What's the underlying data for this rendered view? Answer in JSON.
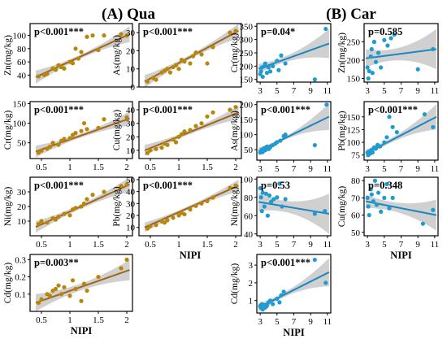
{
  "panel_titles": [
    {
      "label": "(A) Qua"
    },
    {
      "label": "(B) Car"
    }
  ],
  "colors": {
    "qua_point": "#b8860b",
    "qua_line": "#a0651a",
    "car_point": "#1f9bd1",
    "car_line": "#1b86c0",
    "ci_band": "#c8c8c8"
  },
  "chart_data": [
    {
      "panel": "Qua",
      "type": "scatter",
      "ylabel": "Zn(mg/kg)",
      "xlabel": "",
      "annotation": "p<0.001***",
      "xlim": [
        0.3,
        2.1
      ],
      "ylim": [
        22,
        118
      ],
      "xticks": [],
      "yticks": [
        40,
        60,
        80,
        100
      ],
      "fit": [
        [
          0.4,
          37
        ],
        [
          2.05,
          102
        ]
      ],
      "ci": [
        10,
        3,
        12
      ],
      "x": [
        0.45,
        0.55,
        0.6,
        0.7,
        0.75,
        0.8,
        0.85,
        0.9,
        1.0,
        1.05,
        1.1,
        1.15,
        1.2,
        1.3,
        1.4,
        1.5,
        1.6,
        1.9,
        2.0
      ],
      "y": [
        38,
        40,
        42,
        50,
        48,
        55,
        52,
        50,
        60,
        58,
        80,
        65,
        75,
        98,
        100,
        78,
        100,
        102,
        100
      ]
    },
    {
      "panel": "Qua",
      "type": "scatter",
      "ylabel": "As(mg/kg)",
      "xlabel": "",
      "annotation": "p<0.001***",
      "xlim": [
        0.3,
        2.1
      ],
      "ylim": [
        0,
        35
      ],
      "xticks": [],
      "yticks": [
        0,
        10,
        20,
        30
      ],
      "fit": [
        [
          0.4,
          3
        ],
        [
          2.05,
          31
        ]
      ],
      "ci": [
        3.5,
        1.2,
        4
      ],
      "x": [
        0.45,
        0.55,
        0.6,
        0.7,
        0.75,
        0.8,
        0.85,
        0.9,
        0.95,
        1.0,
        1.05,
        1.1,
        1.2,
        1.25,
        1.3,
        1.4,
        1.5,
        1.6,
        1.9,
        2.0
      ],
      "y": [
        3,
        5,
        4,
        8,
        9,
        10,
        8,
        11,
        12,
        10,
        15,
        14,
        13,
        17,
        19,
        18,
        13,
        22,
        30,
        31
      ]
    },
    {
      "panel": "Qua",
      "type": "scatter",
      "ylabel": "Cr(mg/kg)",
      "xlabel": "",
      "annotation": "p<0.001***",
      "xlim": [
        0.3,
        2.1
      ],
      "ylim": [
        10,
        155
      ],
      "xticks": [
        0.5,
        1.0,
        1.5,
        2.0
      ],
      "yticks": [
        50,
        100,
        150
      ],
      "fit": [
        [
          0.4,
          28
        ],
        [
          2.05,
          112
        ]
      ],
      "ci": [
        15,
        5,
        18
      ],
      "x": [
        0.45,
        0.5,
        0.6,
        0.65,
        0.7,
        0.8,
        0.85,
        0.9,
        1.0,
        1.05,
        1.1,
        1.2,
        1.25,
        1.3,
        1.5,
        1.6,
        2.0
      ],
      "y": [
        25,
        30,
        35,
        40,
        50,
        45,
        55,
        60,
        62,
        70,
        75,
        80,
        100,
        85,
        88,
        110,
        115
      ]
    },
    {
      "panel": "Qua",
      "type": "scatter",
      "ylabel": "Cu(mg/kg)",
      "xlabel": "",
      "annotation": "p<0.001***",
      "xlim": [
        0.3,
        2.1
      ],
      "ylim": [
        4,
        46
      ],
      "xticks": [
        0.5,
        1.0,
        1.5,
        2.0
      ],
      "yticks": [
        10,
        20,
        30,
        40
      ],
      "fit": [
        [
          0.4,
          10
        ],
        [
          2.05,
          38
        ]
      ],
      "ci": [
        4,
        1.5,
        5
      ],
      "x": [
        0.45,
        0.5,
        0.6,
        0.7,
        0.75,
        0.8,
        0.9,
        0.95,
        1.0,
        1.05,
        1.1,
        1.2,
        1.3,
        1.4,
        1.5,
        1.6,
        1.9,
        2.0
      ],
      "y": [
        8,
        10,
        11,
        12,
        15,
        14,
        18,
        16,
        20,
        22,
        24,
        25,
        28,
        30,
        35,
        38,
        40,
        42
      ]
    },
    {
      "panel": "Qua",
      "type": "scatter",
      "ylabel": "Ni(mg/kg)",
      "xlabel": "",
      "annotation": "p<0.001***",
      "xlim": [
        0.3,
        2.1
      ],
      "ylim": [
        0,
        40
      ],
      "xticks": [
        0.5,
        1.0,
        1.5,
        2.0
      ],
      "yticks": [
        10,
        20,
        30
      ],
      "fit": [
        [
          0.4,
          6
        ],
        [
          2.05,
          35
        ]
      ],
      "ci": [
        4,
        1.5,
        5
      ],
      "x": [
        0.45,
        0.5,
        0.6,
        0.7,
        0.75,
        0.8,
        0.9,
        1.0,
        1.05,
        1.1,
        1.2,
        1.25,
        1.3,
        1.4,
        1.6,
        1.9,
        2.0
      ],
      "y": [
        8,
        10,
        9,
        12,
        11,
        13,
        15,
        14,
        18,
        19,
        20,
        22,
        25,
        28,
        30,
        34,
        35
      ]
    },
    {
      "panel": "Qua",
      "type": "scatter",
      "ylabel": "Pb(mg/kg)",
      "xlabel": "NIPI",
      "annotation": "p<0.001***",
      "xlim": [
        0.3,
        2.1
      ],
      "ylim": [
        3,
        52
      ],
      "xticks": [
        0.5,
        1.0,
        1.5,
        2.0
      ],
      "yticks": [
        10,
        20,
        30,
        40,
        50
      ],
      "fit": [
        [
          0.4,
          10
        ],
        [
          2.05,
          45
        ]
      ],
      "ci": [
        4,
        1.5,
        5
      ],
      "x": [
        0.45,
        0.5,
        0.6,
        0.7,
        0.75,
        0.8,
        0.9,
        1.0,
        1.05,
        1.1,
        1.2,
        1.3,
        1.4,
        1.5,
        1.6,
        1.9,
        2.0
      ],
      "y": [
        9,
        11,
        12,
        15,
        14,
        16,
        18,
        20,
        22,
        21,
        25,
        28,
        30,
        32,
        35,
        43,
        45
      ]
    },
    {
      "panel": "Qua",
      "type": "scatter",
      "ylabel": "Cd(mg/kg)",
      "xlabel": "NIPI",
      "annotation": "p=0.003**",
      "xlim": [
        0.3,
        2.1
      ],
      "ylim": [
        0.0,
        0.33
      ],
      "xticks": [
        0.5,
        1.0,
        1.5,
        2.0
      ],
      "yticks": [
        0.1,
        0.2,
        0.3
      ],
      "fit": [
        [
          0.4,
          0.05
        ],
        [
          2.05,
          0.24
        ]
      ],
      "ci": [
        0.05,
        0.02,
        0.06
      ],
      "x": [
        0.45,
        0.5,
        0.6,
        0.65,
        0.7,
        0.75,
        0.8,
        0.85,
        0.9,
        1.0,
        1.05,
        1.1,
        1.2,
        1.25,
        1.3,
        1.5,
        1.9,
        2.0
      ],
      "y": [
        0.05,
        0.07,
        0.1,
        0.09,
        0.12,
        0.13,
        0.15,
        0.1,
        0.14,
        0.09,
        0.18,
        0.13,
        0.06,
        0.16,
        0.12,
        0.2,
        0.25,
        0.3
      ]
    },
    {
      "panel": "Car",
      "type": "scatter",
      "ylabel": "Cr(mg/kg)",
      "xlabel": "",
      "annotation": "p=0.04*",
      "xlim": [
        2.6,
        11.4
      ],
      "ylim": [
        140,
        360
      ],
      "xticks": [
        3,
        5,
        7,
        9,
        11
      ],
      "yticks": [
        150,
        200,
        250,
        300,
        350
      ],
      "fit": [
        [
          2.8,
          190
        ],
        [
          11.2,
          285
        ]
      ],
      "ci": [
        18,
        14,
        55
      ],
      "x": [
        3.0,
        3.1,
        3.2,
        3.3,
        3.5,
        3.6,
        3.8,
        4.0,
        4.2,
        4.5,
        5.0,
        5.2,
        5.5,
        6.0,
        9.5,
        10.8
      ],
      "y": [
        170,
        180,
        195,
        160,
        200,
        210,
        175,
        195,
        180,
        200,
        220,
        185,
        240,
        210,
        150,
        340
      ]
    },
    {
      "panel": "Car",
      "type": "scatter",
      "ylabel": "Zn(mg/kg)",
      "xlabel": "",
      "annotation": "p=0.585",
      "xlim": [
        2.6,
        11.4
      ],
      "ylim": [
        140,
        300
      ],
      "xticks": [
        3,
        5,
        7,
        9,
        11
      ],
      "yticks": [
        150,
        200,
        250
      ],
      "fit": [
        [
          2.8,
          205
        ],
        [
          11.2,
          230
        ]
      ],
      "ci": [
        25,
        18,
        55
      ],
      "x": [
        3.0,
        3.1,
        3.2,
        3.4,
        3.5,
        3.6,
        3.8,
        4.0,
        4.3,
        4.6,
        5.0,
        5.4,
        5.8,
        6.2,
        9.0,
        10.8
      ],
      "y": [
        180,
        150,
        170,
        210,
        230,
        165,
        250,
        195,
        220,
        180,
        255,
        240,
        260,
        270,
        175,
        230
      ]
    },
    {
      "panel": "Car",
      "type": "scatter",
      "ylabel": "As(mg/kg)",
      "xlabel": "",
      "annotation": "p<0.001***",
      "xlim": [
        2.6,
        11.4
      ],
      "ylim": [
        15,
        210
      ],
      "xticks": [
        3,
        5,
        7,
        9,
        11
      ],
      "yticks": [
        50,
        100,
        150,
        200
      ],
      "fit": [
        [
          2.8,
          45
        ],
        [
          11.2,
          160
        ]
      ],
      "ci": [
        12,
        8,
        45
      ],
      "x": [
        3.0,
        3.1,
        3.2,
        3.3,
        3.5,
        3.6,
        3.8,
        4.0,
        4.2,
        4.5,
        4.8,
        5.0,
        5.4,
        5.8,
        6.0,
        9.5,
        10.9
      ],
      "y": [
        40,
        45,
        50,
        42,
        55,
        48,
        60,
        52,
        58,
        65,
        70,
        75,
        80,
        95,
        100,
        65,
        200
      ]
    },
    {
      "panel": "Car",
      "type": "scatter",
      "ylabel": "Pb(mg/kg)",
      "xlabel": "",
      "annotation": "p<0.001***",
      "xlim": [
        2.6,
        11.4
      ],
      "ylim": [
        65,
        180
      ],
      "xticks": [
        3,
        5,
        7,
        9,
        11
      ],
      "yticks": [
        75,
        100,
        125,
        150
      ],
      "fit": [
        [
          2.8,
          78
        ],
        [
          11.2,
          150
        ]
      ],
      "ci": [
        8,
        6,
        25
      ],
      "x": [
        3.0,
        3.1,
        3.2,
        3.3,
        3.5,
        3.6,
        3.8,
        4.0,
        4.2,
        4.5,
        5.0,
        5.3,
        5.6,
        6.0,
        6.5,
        9.8,
        10.8
      ],
      "y": [
        80,
        75,
        82,
        78,
        85,
        80,
        90,
        88,
        95,
        92,
        100,
        110,
        150,
        130,
        120,
        155,
        130
      ]
    },
    {
      "panel": "Car",
      "type": "scatter",
      "ylabel": "Ni(mg/kg)",
      "xlabel": "",
      "annotation": "p=0.53",
      "xlim": [
        2.6,
        11.4
      ],
      "ylim": [
        38,
        102
      ],
      "xticks": [
        3,
        5,
        7,
        9,
        11
      ],
      "yticks": [
        40,
        60,
        80,
        100
      ],
      "fit": [
        [
          2.8,
          75
        ],
        [
          11.2,
          62
        ]
      ],
      "ci": [
        10,
        7,
        22
      ],
      "x": [
        3.0,
        3.1,
        3.2,
        3.3,
        3.5,
        3.7,
        3.9,
        4.1,
        4.3,
        4.6,
        5.0,
        5.3,
        5.6,
        6.0,
        9.5,
        10.7
      ],
      "y": [
        90,
        80,
        65,
        85,
        70,
        84,
        60,
        82,
        75,
        78,
        80,
        95,
        70,
        78,
        62,
        65
      ]
    },
    {
      "panel": "Car",
      "type": "scatter",
      "ylabel": "Cu(mg/kg)",
      "xlabel": "NIPI",
      "annotation": "p=0.348",
      "xlim": [
        2.6,
        11.4
      ],
      "ylim": [
        48,
        82
      ],
      "xticks": [
        3,
        5,
        7,
        9,
        11
      ],
      "yticks": [
        50,
        60,
        70,
        80
      ],
      "fit": [
        [
          2.8,
          68
        ],
        [
          11.2,
          60
        ]
      ],
      "ci": [
        4,
        3,
        9
      ],
      "x": [
        3.0,
        3.1,
        3.2,
        3.4,
        3.5,
        3.7,
        3.9,
        4.1,
        4.3,
        4.6,
        5.0,
        5.3,
        5.6,
        6.0,
        9.6,
        10.8
      ],
      "y": [
        70,
        65,
        60,
        75,
        72,
        68,
        80,
        66,
        73,
        62,
        70,
        78,
        64,
        70,
        55,
        63
      ]
    },
    {
      "panel": "Car",
      "type": "scatter",
      "ylabel": "Cd(mg/kg)",
      "xlabel": "NIPI",
      "annotation": "p<0.001***",
      "xlim": [
        2.6,
        11.4
      ],
      "ylim": [
        0.3,
        3.6
      ],
      "xticks": [
        3,
        5,
        7,
        9,
        11
      ],
      "yticks": [
        1,
        2,
        3
      ],
      "fit": [
        [
          2.8,
          0.6
        ],
        [
          11.2,
          2.6
        ]
      ],
      "ci": [
        0.25,
        0.18,
        0.8
      ],
      "x": [
        3.0,
        3.1,
        3.2,
        3.3,
        3.5,
        3.6,
        3.8,
        4.0,
        4.2,
        4.5,
        5.0,
        5.3,
        5.5,
        5.8,
        9.5,
        10.8
      ],
      "y": [
        0.7,
        0.6,
        0.8,
        0.5,
        0.75,
        0.6,
        0.7,
        0.9,
        1.0,
        0.8,
        1.1,
        0.9,
        1.3,
        1.5,
        3.3,
        2.0
      ]
    }
  ]
}
